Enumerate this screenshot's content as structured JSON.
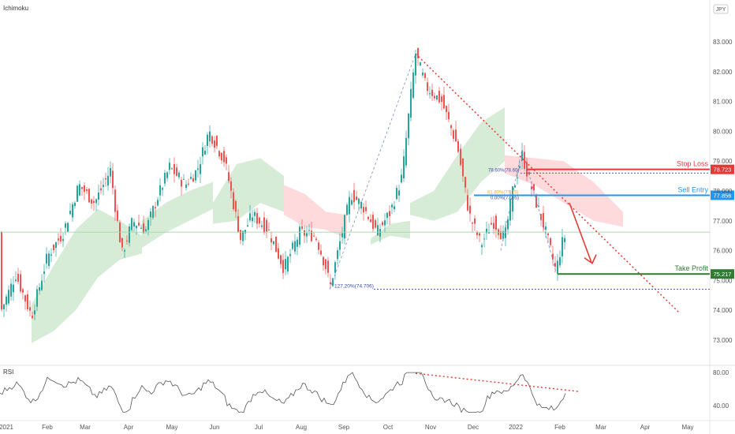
{
  "chart_data": {
    "type": "candlestick",
    "title": "Ichimoku",
    "currency_badge": "JPY",
    "y_axis": {
      "ticks": [
        "83.000",
        "82.000",
        "81.000",
        "80.000",
        "79.000",
        "78.000",
        "77.000",
        "76.000",
        "75.000",
        "74.000",
        "73.000"
      ],
      "range": [
        72.75,
        83.6
      ]
    },
    "x_axis": {
      "ticks": [
        "2021",
        "Feb",
        "Mar",
        "Apr",
        "May",
        "Jun",
        "Jul",
        "Aug",
        "Sep",
        "Oct",
        "Nov",
        "Dec",
        "2022",
        "Feb",
        "Mar",
        "Apr",
        "May"
      ]
    },
    "current_price": 76.62,
    "levels": [
      {
        "name": "Stop Loss",
        "value": "78.723",
        "color": "#e53935"
      },
      {
        "name": "Sell Entry",
        "value": "77.856",
        "color": "#2196f3"
      },
      {
        "name": "Take Profit",
        "value": "75.217",
        "color": "#2e7d32"
      }
    ],
    "fib_labels": [
      {
        "text": "78.60%(78.60)"
      },
      {
        "text": "61.80%(77.75)"
      },
      {
        "text": "0.00%(77.95)"
      },
      {
        "text": "127.20%(74.706)",
        "value": 74.706
      }
    ],
    "rsi": {
      "label": "RSI",
      "ticks": [
        "80.00",
        "40.00"
      ]
    },
    "colors": {
      "up": "#26a69a",
      "down": "#ef5350",
      "cloud_up": "#c8e6c9",
      "cloud_down": "#ffcdd2",
      "trendline": "#e53935"
    }
  }
}
